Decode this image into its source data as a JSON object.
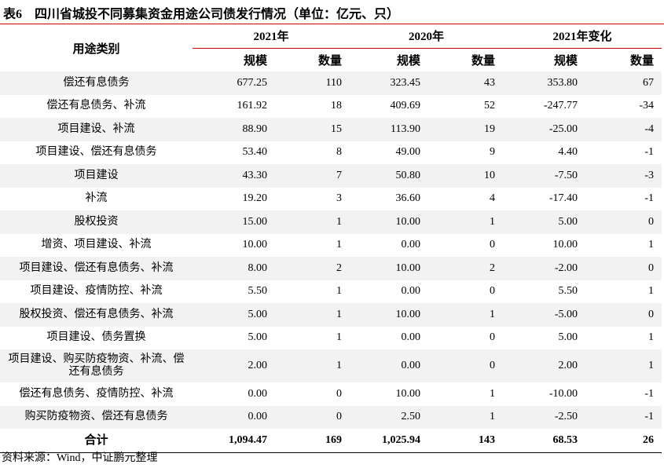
{
  "title": "表6　四川省城投不同募集资金用途公司债发行情况（单位：亿元、只）",
  "header": {
    "category": "用途类别",
    "groups": [
      "2021年",
      "2020年",
      "2021年变化"
    ],
    "sub": [
      "规模",
      "数量",
      "规模",
      "数量",
      "规模",
      "数量"
    ]
  },
  "rows": [
    {
      "label": "偿还有息债务",
      "v": [
        "677.25",
        "110",
        "323.45",
        "43",
        "353.80",
        "67"
      ]
    },
    {
      "label": "偿还有息债务、补流",
      "v": [
        "161.92",
        "18",
        "409.69",
        "52",
        "-247.77",
        "-34"
      ]
    },
    {
      "label": "项目建设、补流",
      "v": [
        "88.90",
        "15",
        "113.90",
        "19",
        "-25.00",
        "-4"
      ]
    },
    {
      "label": "项目建设、偿还有息债务",
      "v": [
        "53.40",
        "8",
        "49.00",
        "9",
        "4.40",
        "-1"
      ]
    },
    {
      "label": "项目建设",
      "v": [
        "43.30",
        "7",
        "50.80",
        "10",
        "-7.50",
        "-3"
      ]
    },
    {
      "label": "补流",
      "v": [
        "19.20",
        "3",
        "36.60",
        "4",
        "-17.40",
        "-1"
      ]
    },
    {
      "label": "股权投资",
      "v": [
        "15.00",
        "1",
        "10.00",
        "1",
        "5.00",
        "0"
      ]
    },
    {
      "label": "增资、项目建设、补流",
      "v": [
        "10.00",
        "1",
        "0.00",
        "0",
        "10.00",
        "1"
      ]
    },
    {
      "label": "项目建设、偿还有息债务、补流",
      "v": [
        "8.00",
        "2",
        "10.00",
        "2",
        "-2.00",
        "0"
      ]
    },
    {
      "label": "项目建设、疫情防控、补流",
      "v": [
        "5.50",
        "1",
        "0.00",
        "0",
        "5.50",
        "1"
      ]
    },
    {
      "label": "股权投资、偿还有息债务、补流",
      "v": [
        "5.00",
        "1",
        "10.00",
        "1",
        "-5.00",
        "0"
      ]
    },
    {
      "label": "项目建设、债务置换",
      "v": [
        "5.00",
        "1",
        "0.00",
        "0",
        "5.00",
        "1"
      ]
    },
    {
      "label": "项目建设、购买防疫物资、补流、偿还有息债务",
      "v": [
        "2.00",
        "1",
        "0.00",
        "0",
        "2.00",
        "1"
      ]
    },
    {
      "label": "偿还有息债务、疫情防控、补流",
      "v": [
        "0.00",
        "0",
        "10.00",
        "1",
        "-10.00",
        "-1"
      ]
    },
    {
      "label": "购买防疫物资、偿还有息债务",
      "v": [
        "0.00",
        "0",
        "2.50",
        "1",
        "-2.50",
        "-1"
      ]
    }
  ],
  "total": {
    "label": "合计",
    "v": [
      "1,094.47",
      "169",
      "1,025.94",
      "143",
      "68.53",
      "26"
    ]
  },
  "source": "资料来源：Wind，中证鹏元整理",
  "colors": {
    "rule": "#c00000",
    "shade": "#f2f2f2"
  }
}
